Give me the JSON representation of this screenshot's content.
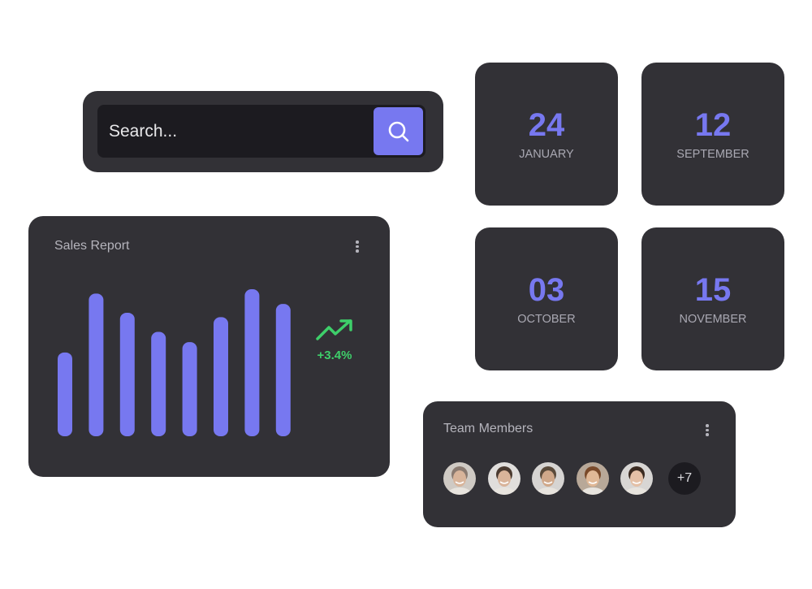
{
  "search": {
    "placeholder": "Search...",
    "icon": "search-icon"
  },
  "dates": [
    {
      "day": "24",
      "month": "JANUARY"
    },
    {
      "day": "12",
      "month": "SEPTEMBER"
    },
    {
      "day": "03",
      "month": "OCTOBER"
    },
    {
      "day": "15",
      "month": "NOVEMBER"
    }
  ],
  "sales": {
    "title": "Sales Report",
    "trend_icon": "trending-up-icon",
    "trend": "+3.4%"
  },
  "chart_data": {
    "type": "bar",
    "values": [
      57,
      97,
      84,
      71,
      64,
      81,
      100,
      90
    ],
    "grid": false
  },
  "team": {
    "title": "Team Members",
    "more": "+7",
    "avatars": [
      {
        "skin": "#d8b49a",
        "hair": "#8a7a70",
        "bg": "#cfcac4"
      },
      {
        "skin": "#d9b49a",
        "hair": "#4a3a30",
        "bg": "#e0dedc"
      },
      {
        "skin": "#d0a88a",
        "hair": "#5a4a3a",
        "bg": "#d6d4d2"
      },
      {
        "skin": "#e0b896",
        "hair": "#7a4a2a",
        "bg": "#b8a898"
      },
      {
        "skin": "#e4c0a6",
        "hair": "#3a2a20",
        "bg": "#d8d6d4"
      }
    ]
  },
  "colors": {
    "accent": "#7778f0",
    "positive": "#3ecf6a",
    "card": "#323136"
  }
}
